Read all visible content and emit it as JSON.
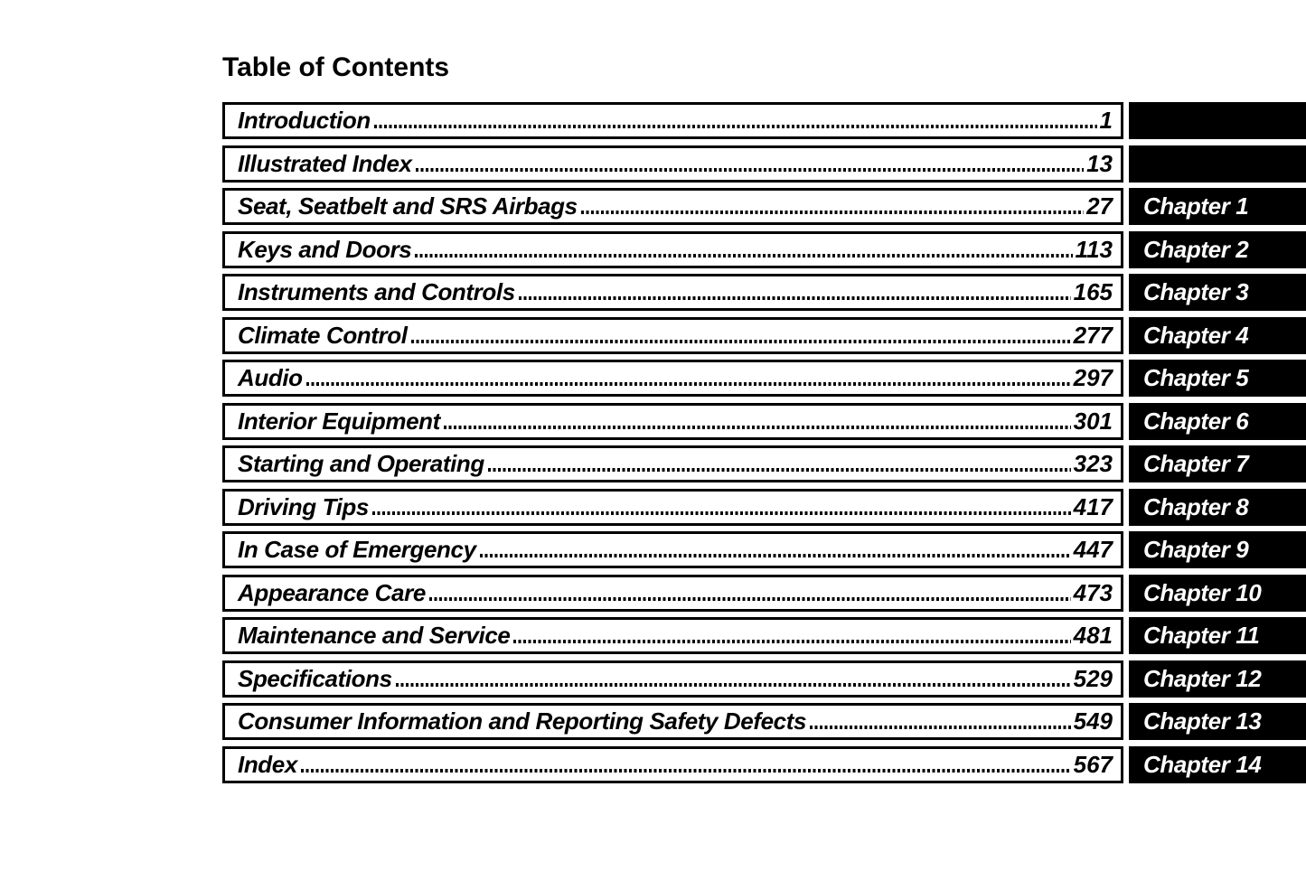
{
  "page_title": "Table of Contents",
  "colors": {
    "ink": "#000000",
    "paper": "#ffffff",
    "tab_background": "#000000",
    "tab_text": "#ffffff"
  },
  "toc": {
    "rows": [
      {
        "title": "Introduction",
        "page": "1",
        "chapter": ""
      },
      {
        "title": "Illustrated Index",
        "page": "13",
        "chapter": ""
      },
      {
        "title": "Seat, Seatbelt and SRS Airbags",
        "page": "27",
        "chapter": "Chapter 1"
      },
      {
        "title": "Keys and Doors",
        "page": "113",
        "chapter": "Chapter 2"
      },
      {
        "title": "Instruments and Controls",
        "page": "165",
        "chapter": "Chapter 3"
      },
      {
        "title": "Climate Control",
        "page": "277",
        "chapter": "Chapter 4"
      },
      {
        "title": "Audio",
        "page": "297",
        "chapter": "Chapter 5"
      },
      {
        "title": "Interior Equipment",
        "page": "301",
        "chapter": "Chapter 6"
      },
      {
        "title": "Starting and Operating",
        "page": "323",
        "chapter": "Chapter 7"
      },
      {
        "title": "Driving Tips",
        "page": "417",
        "chapter": "Chapter 8"
      },
      {
        "title": "In Case of Emergency",
        "page": "447",
        "chapter": "Chapter 9"
      },
      {
        "title": "Appearance Care",
        "page": "473",
        "chapter": "Chapter 10"
      },
      {
        "title": "Maintenance and Service",
        "page": "481",
        "chapter": "Chapter 11"
      },
      {
        "title": "Specifications",
        "page": "529",
        "chapter": "Chapter 12"
      },
      {
        "title": "Consumer Information and Reporting Safety Defects",
        "page": "549",
        "chapter": "Chapter 13"
      },
      {
        "title": "Index",
        "page": "567",
        "chapter": "Chapter 14"
      }
    ]
  }
}
